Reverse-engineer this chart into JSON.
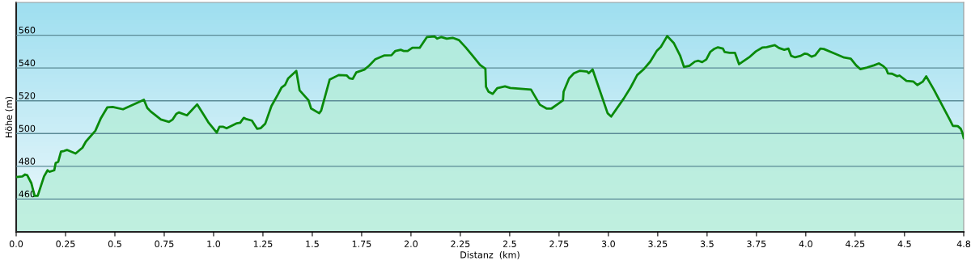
{
  "chart_data": {
    "type": "area",
    "xlabel": "Distanz  (km)",
    "ylabel": "Höhe (m)",
    "xlim": [
      0,
      4.8
    ],
    "ylim": [
      440,
      580
    ],
    "xticks": [
      {
        "value": 0,
        "label": "0.0"
      },
      0.25,
      0.5,
      0.75,
      {
        "value": 1,
        "label": "1.0"
      },
      1.25,
      1.5,
      1.75,
      {
        "value": 2,
        "label": "2.0"
      },
      2.25,
      2.5,
      2.75,
      {
        "value": 3,
        "label": "3.0"
      },
      3.25,
      3.5,
      3.75,
      {
        "value": 4,
        "label": "4.0"
      },
      4.25,
      4.5,
      4.8
    ],
    "yticks": [
      460,
      480,
      500,
      520,
      540,
      560
    ],
    "grid": "y",
    "series": [
      {
        "color": "#0a8a0a",
        "x": [
          0,
          0.031,
          0.045,
          0.056,
          0.077,
          0.093,
          0.109,
          0.141,
          0.159,
          0.168,
          0.193,
          0.2,
          0.213,
          0.227,
          0.243,
          0.257,
          0.301,
          0.336,
          0.353,
          0.401,
          0.428,
          0.462,
          0.489,
          0.541,
          0.647,
          0.664,
          0.681,
          0.733,
          0.774,
          0.793,
          0.811,
          0.824,
          0.865,
          0.917,
          0.975,
          1.016,
          1.03,
          1.047,
          1.066,
          1.118,
          1.135,
          1.153,
          1.166,
          1.194,
          1.221,
          1.239,
          1.262,
          1.293,
          1.326,
          1.344,
          1.362,
          1.378,
          1.419,
          1.436,
          1.481,
          1.494,
          1.535,
          1.545,
          1.588,
          1.634,
          1.675,
          1.688,
          1.705,
          1.723,
          1.764,
          1.788,
          1.818,
          1.866,
          1.901,
          1.921,
          1.948,
          1.962,
          1.983,
          2.007,
          2.044,
          2.081,
          2.12,
          2.133,
          2.154,
          2.181,
          2.211,
          2.243,
          2.277,
          2.311,
          2.35,
          2.377,
          2.38,
          2.393,
          2.414,
          2.437,
          2.476,
          2.503,
          2.608,
          2.653,
          2.688,
          2.712,
          2.749,
          2.77,
          2.773,
          2.801,
          2.825,
          2.856,
          2.893,
          2.9,
          2.92,
          2.996,
          3.014,
          3.078,
          3.112,
          3.146,
          3.181,
          3.212,
          3.246,
          3.266,
          3.298,
          3.332,
          3.363,
          3.383,
          3.411,
          3.438,
          3.456,
          3.475,
          3.496,
          3.516,
          3.534,
          3.555,
          3.58,
          3.589,
          3.614,
          3.641,
          3.662,
          3.713,
          3.747,
          3.779,
          3.802,
          3.843,
          3.864,
          3.891,
          3.912,
          3.926,
          3.946,
          3.974,
          3.995,
          4.008,
          4.029,
          4.047,
          4.074,
          4.091,
          4.146,
          4.194,
          4.228,
          4.255,
          4.276,
          4.31,
          4.345,
          4.37,
          4.393,
          4.407,
          4.416,
          4.437,
          4.462,
          4.475,
          4.51,
          4.544,
          4.565,
          4.592,
          4.61,
          4.647,
          4.73,
          4.745,
          4.77,
          4.785,
          4.792,
          4.8
        ],
        "values": [
          473.5,
          473.8,
          475,
          474.6,
          469.7,
          462,
          462,
          473.8,
          477.6,
          476.7,
          477.6,
          482,
          482.8,
          489,
          489.4,
          490,
          487.8,
          491.4,
          495.1,
          501.7,
          509.1,
          516,
          516.2,
          514.8,
          520.6,
          515.7,
          513.5,
          508.6,
          507.1,
          508.6,
          512,
          512.9,
          511.1,
          517.8,
          506.6,
          500.6,
          504.2,
          504.2,
          503.2,
          506.3,
          506.6,
          509.6,
          508.8,
          507.9,
          502.9,
          503.3,
          506.1,
          516.8,
          523.9,
          528,
          529.6,
          533.7,
          538.2,
          526.3,
          520.3,
          515.3,
          512.4,
          514,
          532.9,
          535.7,
          535.4,
          533.7,
          533.4,
          537.3,
          539,
          541.4,
          545.2,
          547.7,
          547.8,
          550.4,
          551.1,
          550.4,
          550.4,
          552.3,
          552.3,
          558.9,
          559.2,
          557.9,
          558.9,
          557.9,
          558.4,
          557,
          552.6,
          547.7,
          541.9,
          539.5,
          528.5,
          525.5,
          524.2,
          527.7,
          528.8,
          527.8,
          526.8,
          517.6,
          515.2,
          515.3,
          518.5,
          520.3,
          525.5,
          533.7,
          536.7,
          538.3,
          537.8,
          536.8,
          539.1,
          512.4,
          510.4,
          521.4,
          528,
          535.7,
          539.5,
          543.9,
          550.6,
          552.9,
          559.5,
          555.1,
          547.7,
          540.6,
          541.4,
          543.9,
          544.4,
          543.6,
          545.2,
          549.8,
          551.5,
          552.6,
          551.8,
          549.7,
          549.3,
          549.3,
          542.3,
          546.5,
          550.1,
          552.4,
          552.7,
          553.9,
          552.2,
          551.1,
          551.8,
          547.4,
          546.5,
          547.4,
          548.8,
          548.5,
          546.9,
          547.7,
          551.8,
          551.6,
          548.8,
          546.4,
          545.7,
          541.6,
          539.3,
          540.3,
          541.6,
          542.8,
          541.1,
          539.5,
          536.7,
          536.5,
          535,
          535.4,
          532.1,
          531.8,
          529.6,
          531.6,
          534.9,
          527.2,
          508.3,
          504.7,
          504.5,
          502.9,
          500.9,
          497.3
        ]
      }
    ]
  }
}
